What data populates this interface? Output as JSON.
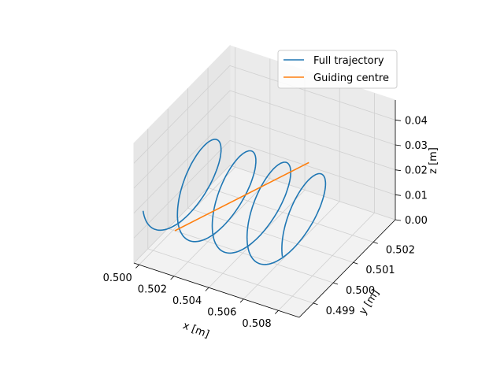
{
  "chart_data": {
    "type": "line",
    "projection": "3d",
    "xlabel": "x [m]",
    "ylabel": "y [m]",
    "zlabel": "z [m]",
    "xlim": [
      0.4997,
      0.5092
    ],
    "ylim": [
      0.4983,
      0.5031
    ],
    "zlim": [
      0.0,
      0.048
    ],
    "x_ticks": [
      "0.500",
      "0.502",
      "0.504",
      "0.506",
      "0.508"
    ],
    "y_ticks": [
      "0.499",
      "0.500",
      "0.501",
      "0.502"
    ],
    "z_ticks": [
      "0.00",
      "0.01",
      "0.02",
      "0.03",
      "0.04"
    ],
    "grid": true,
    "legend": {
      "position": "top-right"
    },
    "series": [
      {
        "name": "Full trajectory",
        "color": "#1f77b4",
        "kind": "helix",
        "x_range": [
          0.5,
          0.508
        ],
        "center_y": 0.5,
        "center_z": 0.02,
        "radius": 0.0015,
        "turns": 4,
        "start_phase_deg": 180
      },
      {
        "name": "Guiding centre",
        "color": "#ff7f0e",
        "kind": "line",
        "x": [
          0.5001,
          0.5078
        ],
        "y": [
          0.5,
          0.5
        ],
        "z": [
          0.0,
          0.045
        ]
      }
    ]
  }
}
